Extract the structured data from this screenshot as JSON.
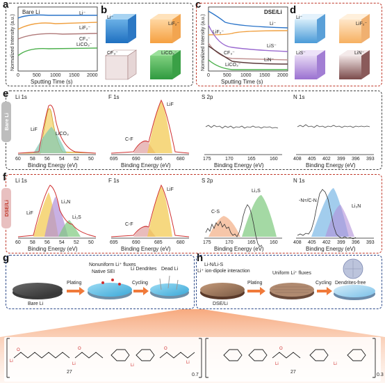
{
  "panels": {
    "a": "a",
    "b": "b",
    "c": "c",
    "d": "d",
    "e": "e",
    "f": "f",
    "g": "g",
    "h": "h"
  },
  "panel_a": {
    "legend": "Bare Li",
    "xlabel": "Sputting Time (s)",
    "ylabel": "Normalized Intensity (a.u.)",
    "xticks": [
      "0",
      "500",
      "1000",
      "1500",
      "2000"
    ],
    "series": [
      "Li⁻",
      "LiF₂⁻",
      "CF₃⁻",
      "LiCO₃⁻"
    ]
  },
  "panel_b": {
    "cubes": [
      "Li⁻",
      "LiF₂⁻",
      "CF₃⁻",
      "LiCO₃⁻"
    ]
  },
  "panel_c": {
    "legend": "DSE/Li",
    "xlabel": "Sputting Time (s)",
    "ylabel": "Normalized Intensity (a.u.)",
    "xticks": [
      "0",
      "500",
      "1000",
      "1500",
      "2000"
    ],
    "series": [
      "Li⁻",
      "LiF₂⁻",
      "LiS⁻",
      "CF₃⁻",
      "LiN⁻",
      "LiCO₃⁻"
    ]
  },
  "panel_d": {
    "cubes": [
      "Li⁻",
      "LiF₂⁻",
      "LiS⁻",
      "LiN⁻"
    ]
  },
  "panel_e": {
    "tab": "Bare Li",
    "xlabel": "Binding Energy (eV)",
    "plots": [
      {
        "title": "Li 1s",
        "ticks": [
          "60",
          "58",
          "56",
          "54",
          "52",
          "50"
        ],
        "peaks": [
          "LiF",
          "LiCO₃"
        ]
      },
      {
        "title": "F 1s",
        "ticks": [
          "695",
          "690",
          "685",
          "680"
        ],
        "peaks": [
          "C-F",
          "LiF"
        ]
      },
      {
        "title": "S 2p",
        "ticks": [
          "175",
          "170",
          "165",
          "160"
        ],
        "peaks": []
      },
      {
        "title": "N 1s",
        "ticks": [
          "408",
          "405",
          "402",
          "399",
          "396",
          "393"
        ],
        "peaks": []
      }
    ]
  },
  "panel_f": {
    "tab": "DSE/Li",
    "xlabel": "Binding Energy (eV)",
    "plots": [
      {
        "title": "Li 1s",
        "ticks": [
          "60",
          "58",
          "56",
          "54",
          "52",
          "50"
        ],
        "peaks": [
          "LiF",
          "Li₃N",
          "Li₂S"
        ]
      },
      {
        "title": "F 1s",
        "ticks": [
          "695",
          "690",
          "685",
          "680"
        ],
        "peaks": [
          "C-F",
          "LiF"
        ]
      },
      {
        "title": "S 2p",
        "ticks": [
          "175",
          "170",
          "165",
          "160"
        ],
        "peaks": [
          "C-S",
          "Li₂S"
        ]
      },
      {
        "title": "N 1s",
        "ticks": [
          "408",
          "405",
          "402",
          "399",
          "396",
          "393"
        ],
        "peaks": [
          "-N=/C-N",
          "Li₃N"
        ]
      }
    ]
  },
  "panel_g": {
    "labels": [
      "Nonuniform Li⁺ fluxes",
      "Native SEI",
      "Li Dendrites",
      "Dead Li",
      "Bare Li"
    ],
    "arrows": [
      "Plating",
      "Cycling"
    ]
  },
  "panel_h": {
    "labels": [
      "Li-N/Li-S",
      "Li⁺ ion-dipole interaction",
      "Uniform Li⁺ fluxes",
      "Dendrites-free",
      "DSE/Li"
    ],
    "arrows": [
      "Plating",
      "Cycling"
    ]
  },
  "structure": {
    "sub1": "27",
    "sub2": "0.7",
    "sub3": "27",
    "sub4": "0.3"
  }
}
